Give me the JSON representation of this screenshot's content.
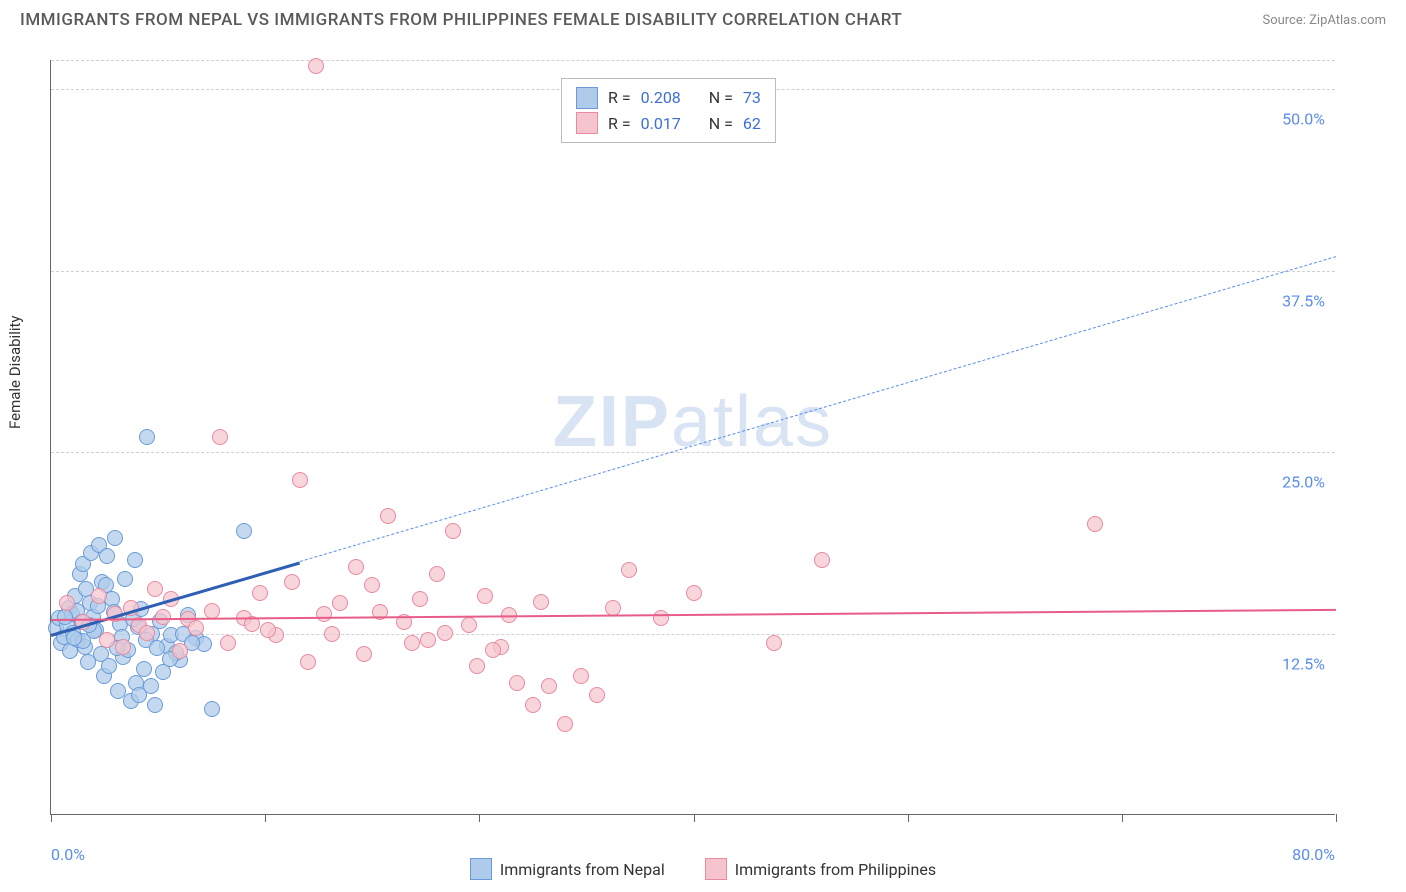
{
  "title": "IMMIGRANTS FROM NEPAL VS IMMIGRANTS FROM PHILIPPINES FEMALE DISABILITY CORRELATION CHART",
  "source": "Source: ZipAtlas.com",
  "y_axis_label": "Female Disability",
  "watermark_zip": "ZIP",
  "watermark_atlas": "atlas",
  "chart": {
    "type": "scatter",
    "xlim": [
      0,
      80
    ],
    "ylim": [
      0,
      52
    ],
    "y_gridlines": [
      12.5,
      25.0,
      37.5,
      50.0
    ],
    "y_tick_labels": [
      "12.5%",
      "25.0%",
      "37.5%",
      "50.0%"
    ],
    "x_ticks": [
      0,
      13.33,
      26.67,
      40,
      53.33,
      66.67,
      80
    ],
    "x_min_label": "0.0%",
    "x_max_label": "80.0%",
    "background_color": "#ffffff",
    "grid_color": "#d0d0d0",
    "axis_color": "#666666",
    "tick_label_color": "#5b8def",
    "point_radius": 8,
    "series": [
      {
        "name": "Immigrants from Nepal",
        "fill": "#aecbeb",
        "stroke": "#6a9bd8",
        "r_value": "0.208",
        "n_value": "73",
        "trend": {
          "x1": 0,
          "y1": 12.5,
          "x2": 15.5,
          "y2": 17.5,
          "solid_color": "#2e5fb5",
          "solid_width": 3
        },
        "trend_ext": {
          "x1": 15.5,
          "y1": 17.5,
          "x2": 80,
          "y2": 38.5,
          "dash_color": "#5b8def",
          "dash_width": 1.5
        },
        "points": [
          [
            0.3,
            12.8
          ],
          [
            0.5,
            13.5
          ],
          [
            0.6,
            11.8
          ],
          [
            0.8,
            12.2
          ],
          [
            1.0,
            13.0
          ],
          [
            1.1,
            14.2
          ],
          [
            1.2,
            11.2
          ],
          [
            1.3,
            13.8
          ],
          [
            1.4,
            12.5
          ],
          [
            1.5,
            15.0
          ],
          [
            1.6,
            14.0
          ],
          [
            1.7,
            12.0
          ],
          [
            1.8,
            16.5
          ],
          [
            1.9,
            13.2
          ],
          [
            2.0,
            17.2
          ],
          [
            2.1,
            11.5
          ],
          [
            2.2,
            15.5
          ],
          [
            2.3,
            10.5
          ],
          [
            2.4,
            14.5
          ],
          [
            2.5,
            18.0
          ],
          [
            2.6,
            13.6
          ],
          [
            2.8,
            12.7
          ],
          [
            3.0,
            18.5
          ],
          [
            3.1,
            11.0
          ],
          [
            3.2,
            16.0
          ],
          [
            3.3,
            9.5
          ],
          [
            3.5,
            17.8
          ],
          [
            3.6,
            10.2
          ],
          [
            3.8,
            14.8
          ],
          [
            4.0,
            19.0
          ],
          [
            4.2,
            8.5
          ],
          [
            4.3,
            13.1
          ],
          [
            4.5,
            10.8
          ],
          [
            4.8,
            11.3
          ],
          [
            5.0,
            7.8
          ],
          [
            5.2,
            17.5
          ],
          [
            5.3,
            9.0
          ],
          [
            5.5,
            8.2
          ],
          [
            5.8,
            10.0
          ],
          [
            6.0,
            26.0
          ],
          [
            6.2,
            8.8
          ],
          [
            6.5,
            7.5
          ],
          [
            6.8,
            13.3
          ],
          [
            7.0,
            9.8
          ],
          [
            7.2,
            11.6
          ],
          [
            7.5,
            12.3
          ],
          [
            8.0,
            10.6
          ],
          [
            8.5,
            13.7
          ],
          [
            9.0,
            12.1
          ],
          [
            9.5,
            11.7
          ],
          [
            10.0,
            7.2
          ],
          [
            3.4,
            15.8
          ],
          [
            4.6,
            16.2
          ],
          [
            5.4,
            12.9
          ],
          [
            6.3,
            12.4
          ],
          [
            7.8,
            11.1
          ],
          [
            2.0,
            11.9
          ],
          [
            2.7,
            12.6
          ],
          [
            3.9,
            13.9
          ],
          [
            4.4,
            12.2
          ],
          [
            5.1,
            13.4
          ],
          [
            5.9,
            12.0
          ],
          [
            6.6,
            11.4
          ],
          [
            7.4,
            10.7
          ],
          [
            8.2,
            12.4
          ],
          [
            8.8,
            11.8
          ],
          [
            0.9,
            13.6
          ],
          [
            1.45,
            12.1
          ],
          [
            2.35,
            13.0
          ],
          [
            2.95,
            14.3
          ],
          [
            12.0,
            19.5
          ],
          [
            4.1,
            11.4
          ],
          [
            5.6,
            14.1
          ]
        ]
      },
      {
        "name": "Immigrants from Philippines",
        "fill": "#f5c4ce",
        "stroke": "#e88aa0",
        "r_value": "0.017",
        "n_value": "62",
        "trend": {
          "x1": 0,
          "y1": 13.5,
          "x2": 80,
          "y2": 14.2,
          "solid_color": "#e85c88",
          "solid_width": 2.5
        },
        "points": [
          [
            1.0,
            14.5
          ],
          [
            2.0,
            13.2
          ],
          [
            3.0,
            15.0
          ],
          [
            3.5,
            12.0
          ],
          [
            4.0,
            13.8
          ],
          [
            4.5,
            11.5
          ],
          [
            5.0,
            14.2
          ],
          [
            5.5,
            13.0
          ],
          [
            6.0,
            12.5
          ],
          [
            6.5,
            15.5
          ],
          [
            7.0,
            13.6
          ],
          [
            7.5,
            14.8
          ],
          [
            8.0,
            11.2
          ],
          [
            8.5,
            13.4
          ],
          [
            9.0,
            12.8
          ],
          [
            10.0,
            14.0
          ],
          [
            10.5,
            26.0
          ],
          [
            11.0,
            11.8
          ],
          [
            12.0,
            13.5
          ],
          [
            13.0,
            15.2
          ],
          [
            14.0,
            12.3
          ],
          [
            15.0,
            16.0
          ],
          [
            15.5,
            23.0
          ],
          [
            16.0,
            10.5
          ],
          [
            17.0,
            13.8
          ],
          [
            18.0,
            14.5
          ],
          [
            19.0,
            17.0
          ],
          [
            19.5,
            11.0
          ],
          [
            20.0,
            15.8
          ],
          [
            21.0,
            20.5
          ],
          [
            22.0,
            13.2
          ],
          [
            23.0,
            14.8
          ],
          [
            24.0,
            16.5
          ],
          [
            25.0,
            19.5
          ],
          [
            26.0,
            13.0
          ],
          [
            27.0,
            15.0
          ],
          [
            28.0,
            11.5
          ],
          [
            29.0,
            9.0
          ],
          [
            30.0,
            7.5
          ],
          [
            31.0,
            8.8
          ],
          [
            32.0,
            6.2
          ],
          [
            33.0,
            9.5
          ],
          [
            34.0,
            8.2
          ],
          [
            35.0,
            14.2
          ],
          [
            36.0,
            16.8
          ],
          [
            22.5,
            11.8
          ],
          [
            24.5,
            12.5
          ],
          [
            26.5,
            10.2
          ],
          [
            28.5,
            13.7
          ],
          [
            40.0,
            15.2
          ],
          [
            45.0,
            11.8
          ],
          [
            48.0,
            17.5
          ],
          [
            65.0,
            20.0
          ],
          [
            16.5,
            51.5
          ],
          [
            12.5,
            13.1
          ],
          [
            13.5,
            12.7
          ],
          [
            17.5,
            12.4
          ],
          [
            20.5,
            13.9
          ],
          [
            23.5,
            12.0
          ],
          [
            27.5,
            11.3
          ],
          [
            30.5,
            14.6
          ],
          [
            38.0,
            13.5
          ]
        ]
      }
    ]
  },
  "legend_labels": {
    "r": "R =",
    "n": "N ="
  }
}
